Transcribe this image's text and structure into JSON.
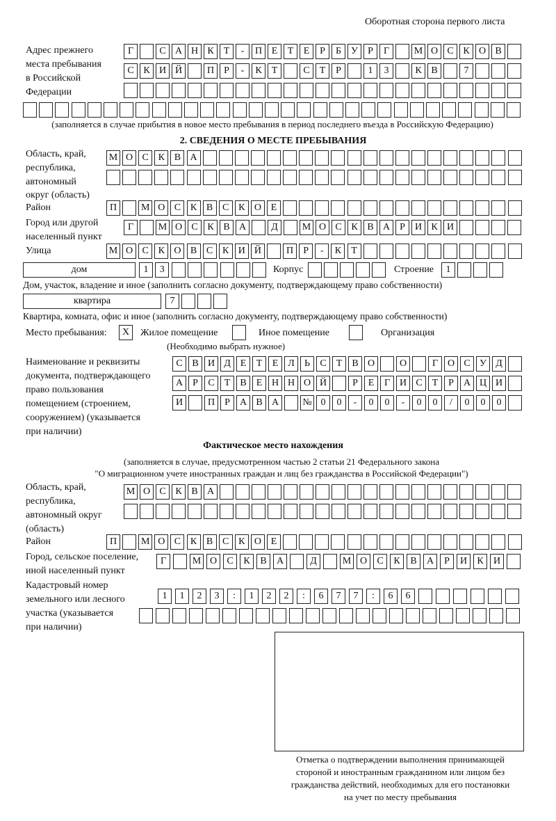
{
  "header": "Оборотная сторона первого листа",
  "previous_address": {
    "label": [
      "Адрес прежнего",
      "места пребывания",
      "в Российской",
      "Федерации"
    ],
    "rows": {
      "prev1": [
        "Г",
        "",
        "С",
        "А",
        "Н",
        "К",
        "Т",
        "-",
        "П",
        "Е",
        "Т",
        "Е",
        "Р",
        "Б",
        "У",
        "Р",
        "Г",
        "",
        "М",
        "О",
        "С",
        "К",
        "О",
        "В"
      ],
      "prev2": [
        "С",
        "К",
        "И",
        "Й",
        "",
        "П",
        "Р",
        "-",
        "К",
        "Т",
        "",
        "С",
        "Т",
        "Р",
        "",
        "1",
        "3",
        "",
        "К",
        "В",
        "",
        "7",
        "",
        ""
      ],
      "prev3": [],
      "prev4": []
    },
    "note": "(заполняется в случае прибытия в новое место пребывания в период последнего въезда в Российскую Федерацию)"
  },
  "section2": {
    "title": "2. СВЕДЕНИЯ О МЕСТЕ ПРЕБЫВАНИЯ",
    "region_label": [
      "Область, край,",
      "республика,",
      "автономный",
      "округ (область)"
    ],
    "district_label": "Район",
    "city_label": [
      "Город или другой",
      "населенный пункт"
    ],
    "street_label": "Улица",
    "rows": {
      "stay_region1": [
        "М",
        "О",
        "С",
        "К",
        "В",
        "А"
      ],
      "stay_region2": [],
      "stay_district": [
        "П",
        "",
        "М",
        "О",
        "С",
        "К",
        "В",
        "С",
        "К",
        "О",
        "Е"
      ],
      "stay_city": [
        "Г",
        "",
        "М",
        "О",
        "С",
        "К",
        "В",
        "А",
        "",
        "Д",
        "",
        "М",
        "О",
        "С",
        "К",
        "В",
        "А",
        "Р",
        "И",
        "К",
        "И"
      ],
      "stay_street": [
        "М",
        "О",
        "С",
        "К",
        "О",
        "В",
        "С",
        "К",
        "И",
        "Й",
        "",
        "П",
        "Р",
        "-",
        "К",
        "Т"
      ],
      "dom_num": [
        "1",
        "3"
      ],
      "korpus": [],
      "stroenie": [
        "1"
      ],
      "kv_num": [
        "7"
      ]
    },
    "house_type": "дом",
    "korpus_label": "Корпус",
    "stroenie_label": "Строение",
    "house_caption": "Дом, участок, владение и иное (заполнить согласно документу, подтверждающему право собственности)",
    "flat_type": "квартира",
    "flat_caption": "Квартира, комната, офис и иное (заполнить согласно документу, подтверждающему право собственности)",
    "place_label": "Место пребывания:",
    "place_options": [
      {
        "label": "Жилое помещение",
        "mark": "X"
      },
      {
        "label": "Иное помещение",
        "mark": ""
      },
      {
        "label": "Организация",
        "mark": ""
      }
    ],
    "place_hint": "(Необходимо выбрать нужное)",
    "doc_label": [
      "Наименование и реквизиты",
      "документа, подтверждающего",
      "право пользования",
      "помещением (строением,",
      "сооружением) (указывается",
      "при наличии)"
    ],
    "doc_rows": {
      "doc1": [
        "С",
        "В",
        "И",
        "Д",
        "Е",
        "Т",
        "Е",
        "Л",
        "Ь",
        "С",
        "Т",
        "В",
        "О",
        "",
        "О",
        "",
        "Г",
        "О",
        "С",
        "У",
        "Д"
      ],
      "doc2": [
        "А",
        "Р",
        "С",
        "Т",
        "В",
        "Е",
        "Н",
        "Н",
        "О",
        "Й",
        "",
        "Р",
        "Е",
        "Г",
        "И",
        "С",
        "Т",
        "Р",
        "А",
        "Ц",
        "И"
      ],
      "doc3": [
        "И",
        "",
        "П",
        "Р",
        "А",
        "В",
        "А",
        "",
        "№",
        "0",
        "0",
        "-",
        "0",
        "0",
        "-",
        "0",
        "0",
        "/",
        "0",
        "0",
        "0"
      ]
    }
  },
  "actual": {
    "title": "Фактическое место нахождения",
    "note": [
      "(заполняется в случае, предусмотренном частью 2 статьи 21 Федерального закона",
      "\"О миграционном учете иностранных граждан и лиц без гражданства в Российской Федерации\")"
    ],
    "region_label": [
      "Область, край,",
      "республика,",
      "автономный округ",
      "(область)"
    ],
    "district_label": "Район",
    "city_label": [
      "Город, сельское поселение,",
      "иной населенный пункт"
    ],
    "cadastre_label": [
      "Кадастровый номер",
      "земельного или лесного",
      "участка (указывается",
      "при наличии)"
    ],
    "rows": {
      "fakt_region1": [
        "М",
        "О",
        "С",
        "К",
        "В",
        "А"
      ],
      "fakt_region2": [],
      "fakt_district": [
        "П",
        "",
        "М",
        "О",
        "С",
        "К",
        "В",
        "С",
        "К",
        "О",
        "Е"
      ],
      "fakt_city": [
        "Г",
        "",
        "М",
        "О",
        "С",
        "К",
        "В",
        "А",
        "",
        "Д",
        "",
        "М",
        "О",
        "С",
        "К",
        "В",
        "А",
        "Р",
        "И",
        "К",
        "И"
      ],
      "cad1": [
        "1",
        "1",
        "2",
        "3",
        ":",
        "1",
        "2",
        "2",
        ":",
        "6",
        "7",
        "7",
        ":",
        "6",
        "6"
      ],
      "cad2": []
    }
  },
  "stamp_caption": [
    "Отметка о подтверждении выполнения принимающей",
    "стороной и иностранным гражданином или лицом без",
    "гражданства действий, необходимых для его постановки",
    "на учет по месту пребывания"
  ]
}
